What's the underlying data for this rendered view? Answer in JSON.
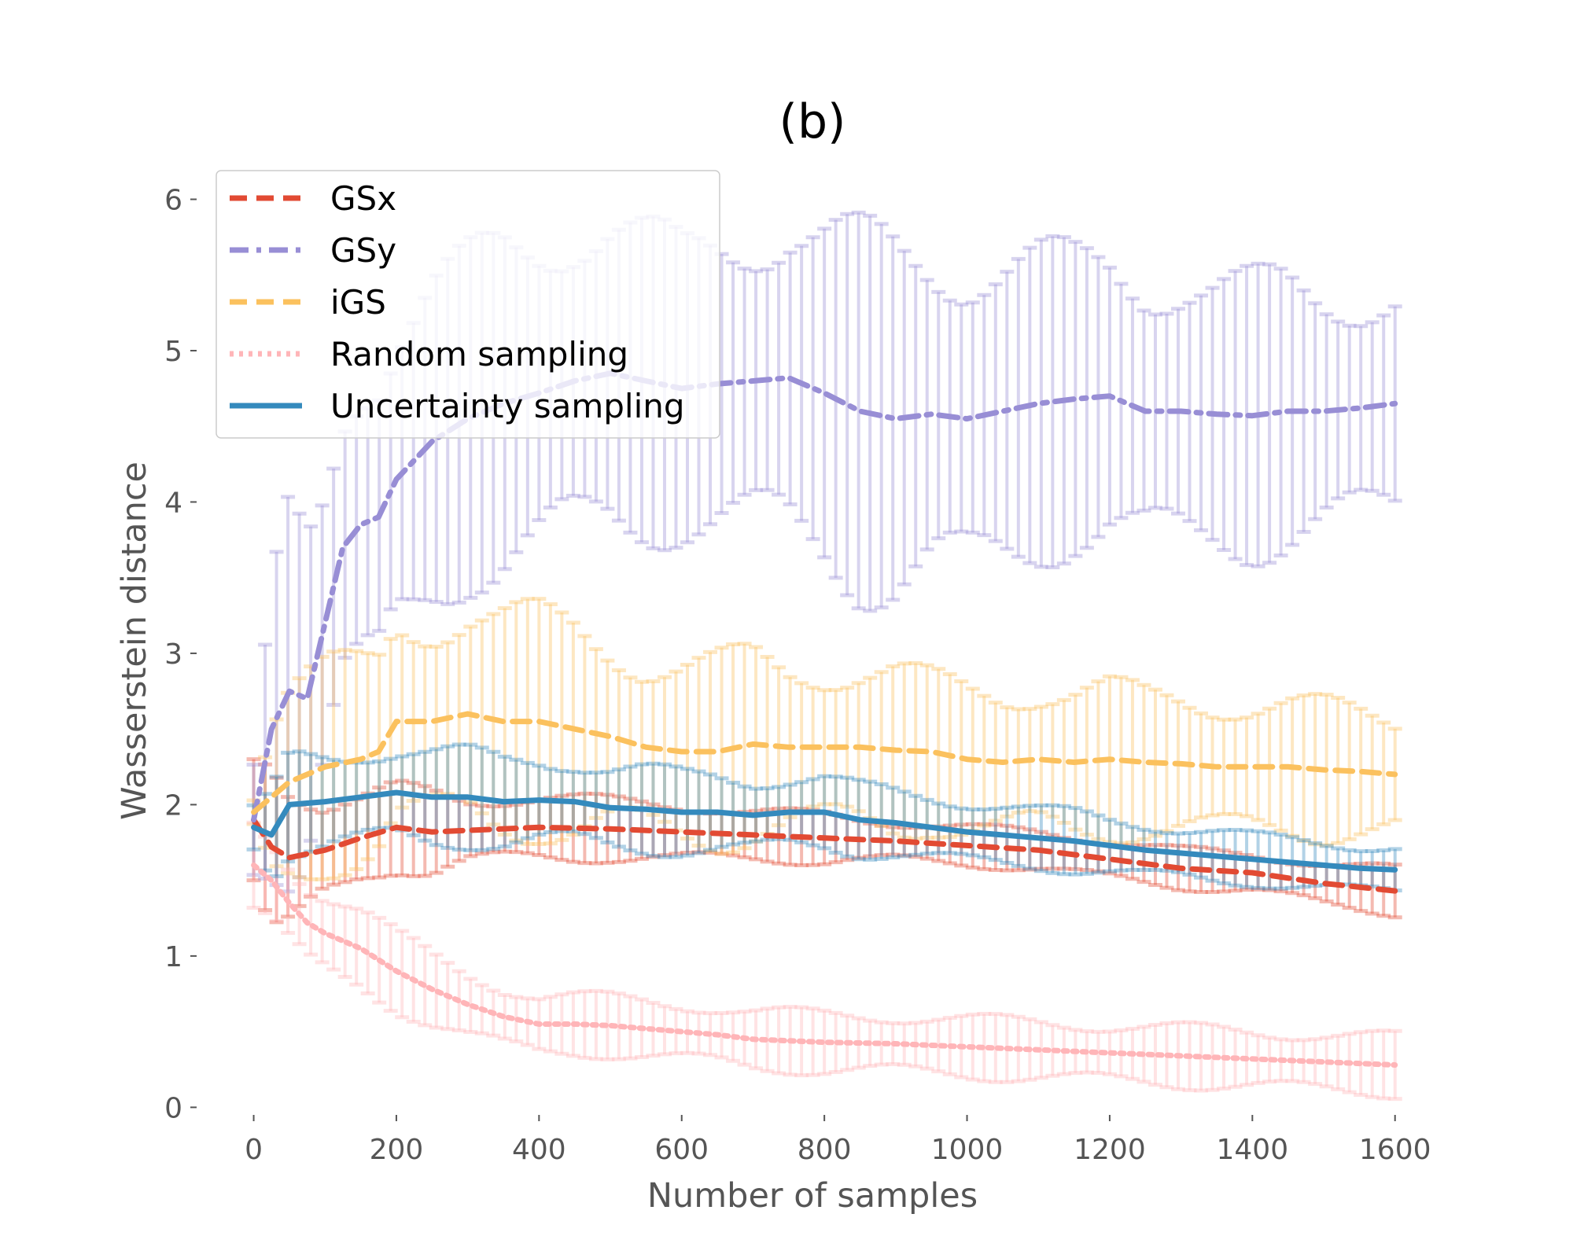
{
  "chart_data": {
    "type": "line",
    "title": "(b)",
    "xlabel": "Number of samples",
    "ylabel": "Wasserstein distance",
    "xlim": [
      -80,
      1640
    ],
    "ylim": [
      -0.05,
      6.2
    ],
    "xticks": [
      0,
      200,
      400,
      600,
      800,
      1000,
      1200,
      1400,
      1600
    ],
    "yticks": [
      0,
      1,
      2,
      3,
      4,
      5,
      6
    ],
    "grid": false,
    "legend_position": "top-left",
    "error_bars": true,
    "series": [
      {
        "name": "GSx",
        "color": "#E24A33",
        "linestyle": "dashed",
        "x": [
          0,
          25,
          50,
          100,
          150,
          200,
          250,
          300,
          400,
          500,
          600,
          700,
          800,
          900,
          1000,
          1100,
          1200,
          1300,
          1400,
          1500,
          1600
        ],
        "y": [
          1.9,
          1.72,
          1.65,
          1.7,
          1.78,
          1.85,
          1.82,
          1.83,
          1.85,
          1.84,
          1.82,
          1.8,
          1.78,
          1.76,
          1.73,
          1.7,
          1.64,
          1.58,
          1.55,
          1.48,
          1.43
        ],
        "err": [
          0.4,
          0.6,
          0.5,
          0.3,
          0.25,
          0.25,
          0.25,
          0.2,
          0.2,
          0.18,
          0.18,
          0.15,
          0.15,
          0.12,
          0.12,
          0.12,
          0.12,
          0.12,
          0.12,
          0.13,
          0.14
        ]
      },
      {
        "name": "GSy",
        "color": "#988ED5",
        "linestyle": "dashdot",
        "x": [
          0,
          25,
          50,
          75,
          100,
          125,
          150,
          175,
          200,
          250,
          300,
          350,
          400,
          450,
          500,
          550,
          600,
          650,
          700,
          750,
          800,
          850,
          900,
          950,
          1000,
          1050,
          1100,
          1150,
          1200,
          1250,
          1300,
          1350,
          1400,
          1450,
          1500,
          1550,
          1600
        ],
        "y": [
          1.9,
          2.5,
          2.75,
          2.7,
          3.2,
          3.7,
          3.85,
          3.9,
          4.15,
          4.4,
          4.55,
          4.65,
          4.72,
          4.8,
          4.85,
          4.8,
          4.75,
          4.78,
          4.8,
          4.82,
          4.72,
          4.6,
          4.55,
          4.58,
          4.55,
          4.6,
          4.65,
          4.68,
          4.7,
          4.6,
          4.6,
          4.58,
          4.57,
          4.6,
          4.6,
          4.62,
          4.65
        ],
        "err": [
          0.3,
          0.8,
          1.1,
          1.0,
          0.85,
          0.9,
          1.0,
          1.0,
          0.95,
          0.95,
          0.95,
          1.0,
          1.0,
          1.0,
          0.95,
          0.9,
          0.85,
          0.9,
          0.95,
          1.0,
          1.0,
          1.05,
          1.05,
          1.0,
          1.0,
          0.95,
          0.9,
          0.85,
          0.85,
          0.85,
          0.85,
          0.8,
          0.8,
          0.8,
          0.75,
          0.72,
          0.7
        ]
      },
      {
        "name": "iGS",
        "color": "#FBC15E",
        "linestyle": "dashed",
        "x": [
          0,
          25,
          50,
          100,
          150,
          175,
          200,
          250,
          300,
          350,
          400,
          450,
          500,
          550,
          600,
          650,
          700,
          750,
          800,
          850,
          900,
          950,
          1000,
          1050,
          1100,
          1150,
          1200,
          1250,
          1300,
          1350,
          1400,
          1450,
          1500,
          1550,
          1600
        ],
        "y": [
          1.95,
          2.05,
          2.15,
          2.25,
          2.3,
          2.35,
          2.55,
          2.55,
          2.6,
          2.55,
          2.55,
          2.5,
          2.45,
          2.38,
          2.35,
          2.35,
          2.4,
          2.38,
          2.38,
          2.38,
          2.36,
          2.35,
          2.3,
          2.28,
          2.3,
          2.28,
          2.3,
          2.28,
          2.27,
          2.25,
          2.25,
          2.25,
          2.23,
          2.22,
          2.2
        ],
        "err": [
          0.1,
          0.5,
          0.6,
          0.6,
          0.6,
          0.6,
          0.65,
          0.65,
          0.65,
          0.65,
          0.65,
          0.65,
          0.6,
          0.55,
          0.55,
          0.55,
          0.55,
          0.5,
          0.5,
          0.5,
          0.5,
          0.45,
          0.45,
          0.45,
          0.45,
          0.45,
          0.45,
          0.42,
          0.42,
          0.42,
          0.4,
          0.4,
          0.4,
          0.38,
          0.36
        ]
      },
      {
        "name": "Random sampling",
        "color": "#FFB5B8",
        "linestyle": "dotted",
        "x": [
          0,
          25,
          50,
          75,
          100,
          150,
          200,
          250,
          300,
          350,
          400,
          450,
          500,
          550,
          600,
          650,
          700,
          800,
          900,
          1000,
          1100,
          1200,
          1300,
          1400,
          1500,
          1600
        ],
        "y": [
          1.6,
          1.5,
          1.35,
          1.22,
          1.15,
          1.05,
          0.9,
          0.78,
          0.68,
          0.6,
          0.55,
          0.55,
          0.54,
          0.52,
          0.5,
          0.48,
          0.45,
          0.43,
          0.42,
          0.4,
          0.38,
          0.36,
          0.34,
          0.32,
          0.3,
          0.28
        ]
      },
      {
        "name": "Uncertainty sampling",
        "color": "#348ABD",
        "linestyle": "solid",
        "x": [
          0,
          25,
          50,
          100,
          150,
          200,
          250,
          300,
          350,
          400,
          450,
          500,
          550,
          600,
          650,
          700,
          750,
          800,
          850,
          900,
          950,
          1000,
          1050,
          1100,
          1150,
          1200,
          1250,
          1300,
          1350,
          1400,
          1450,
          1500,
          1550,
          1600
        ],
        "y": [
          1.85,
          1.8,
          2.0,
          2.02,
          2.05,
          2.08,
          2.05,
          2.05,
          2.02,
          2.03,
          2.02,
          1.98,
          1.97,
          1.95,
          1.95,
          1.93,
          1.95,
          1.95,
          1.9,
          1.88,
          1.85,
          1.82,
          1.8,
          1.78,
          1.76,
          1.73,
          1.7,
          1.68,
          1.66,
          1.64,
          1.62,
          1.6,
          1.58,
          1.57
        ],
        "err": [
          0.12,
          0.25,
          0.3,
          0.3,
          0.3,
          0.28,
          0.28,
          0.28,
          0.27,
          0.27,
          0.26,
          0.25,
          0.25,
          0.24,
          0.24,
          0.23,
          0.22,
          0.22,
          0.21,
          0.2,
          0.2,
          0.2,
          0.19,
          0.18,
          0.18,
          0.17,
          0.17,
          0.16,
          0.16,
          0.15,
          0.15,
          0.15,
          0.15,
          0.15
        ]
      }
    ]
  }
}
